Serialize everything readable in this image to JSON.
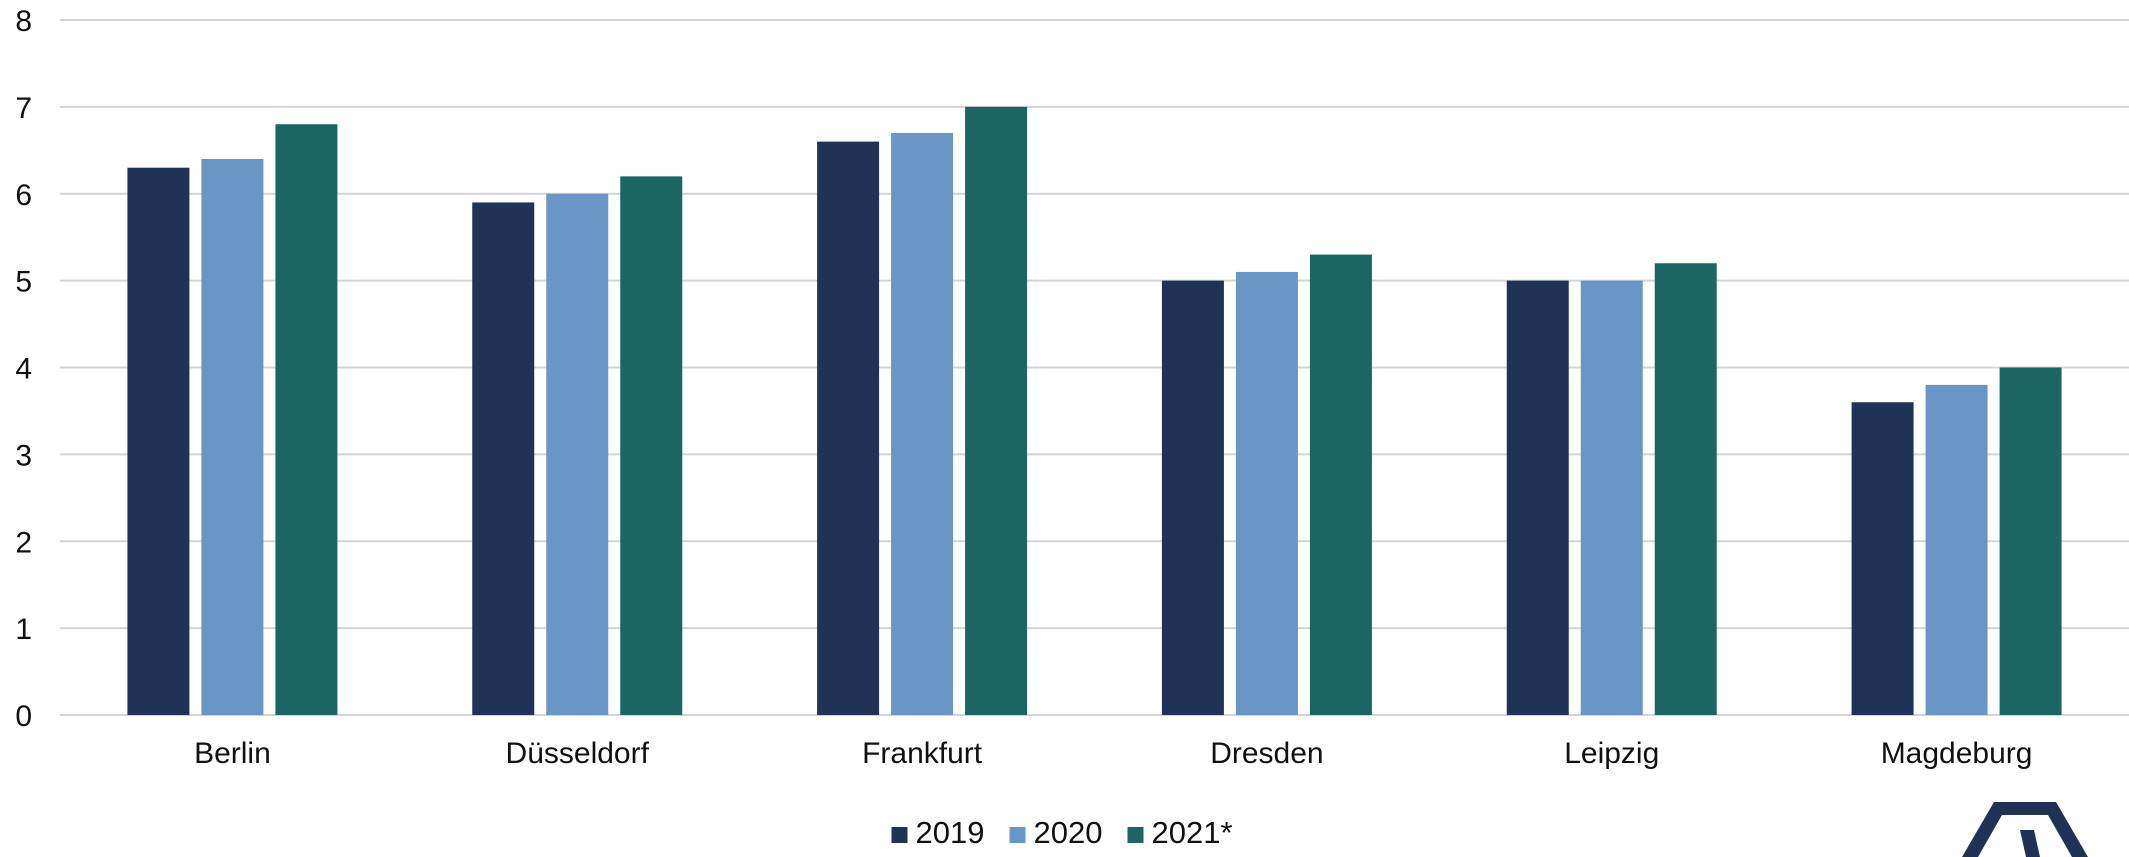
{
  "chart_data": {
    "type": "bar",
    "title": "",
    "xlabel": "",
    "ylabel": "",
    "categories": [
      "Berlin",
      "Düsseldorf",
      "Frankfurt",
      "Dresden",
      "Leipzig",
      "Magdeburg"
    ],
    "series": [
      {
        "name": "2019",
        "color": "#203356",
        "values": [
          6.3,
          5.9,
          6.6,
          5.0,
          5.0,
          3.6
        ]
      },
      {
        "name": "2020",
        "color": "#6a96c5",
        "values": [
          6.4,
          6.0,
          6.7,
          5.1,
          5.0,
          3.8
        ]
      },
      {
        "name": "2021*",
        "color": "#1b6663",
        "values": [
          6.8,
          6.2,
          7.0,
          5.3,
          5.2,
          4.0
        ]
      }
    ],
    "ylim": [
      0,
      8
    ],
    "yticks": [
      "0",
      "1",
      "2",
      "3",
      "4",
      "5",
      "6",
      "7",
      "8"
    ],
    "grid": true,
    "legend_position": "bottom-center"
  },
  "logo": {
    "name": "company-logo",
    "color": "#203356"
  }
}
